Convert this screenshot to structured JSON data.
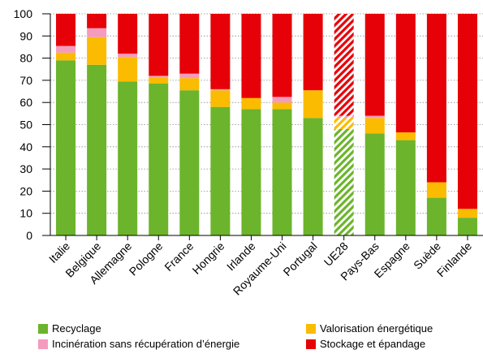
{
  "chart_data": {
    "type": "bar",
    "stacked": true,
    "categories": [
      "Italie",
      "Belgique",
      "Allemagne",
      "Pologne",
      "France",
      "Hongrie",
      "Irlande",
      "Royaume-Uni",
      "Portugal",
      "UE28",
      "Pays-Bas",
      "Espagne",
      "Suède",
      "Finlande"
    ],
    "highlighted_category": "UE28",
    "series": [
      {
        "name": "Recyclage",
        "color": "#6cb42b",
        "values": [
          79,
          77,
          69.5,
          68.5,
          65.5,
          58,
          57,
          57,
          53,
          48,
          46,
          43,
          17,
          8
        ]
      },
      {
        "name": "Valorisation énergétique",
        "color": "#fbbb00",
        "values": [
          3.5,
          12.5,
          11,
          3,
          5.5,
          7.5,
          5,
          3,
          12.5,
          5,
          7,
          3.5,
          7,
          4
        ]
      },
      {
        "name": "Incinération sans récupération d’énergie",
        "color": "#f59bbd",
        "values": [
          3,
          4,
          1.5,
          0.5,
          2,
          0.5,
          0,
          2.5,
          0,
          1,
          1,
          0,
          0,
          0
        ]
      },
      {
        "name": "Stockage et épandage",
        "color": "#e60008",
        "values": [
          14.5,
          6.5,
          18,
          28,
          27,
          34,
          38,
          37.5,
          34.5,
          46,
          46,
          53.5,
          76,
          88
        ]
      }
    ],
    "ylim": [
      0,
      100
    ],
    "yticks": [
      0,
      10,
      20,
      30,
      40,
      50,
      60,
      70,
      80,
      90,
      100
    ],
    "xlabel": "",
    "ylabel": "",
    "grid": true,
    "legend_position": "bottom"
  },
  "legend": {
    "recyclage": "Recyclage",
    "valorisation": "Valorisation énergétique",
    "incineration": "Incinération sans récupération d’énergie",
    "stockage": "Stockage et épandage"
  }
}
